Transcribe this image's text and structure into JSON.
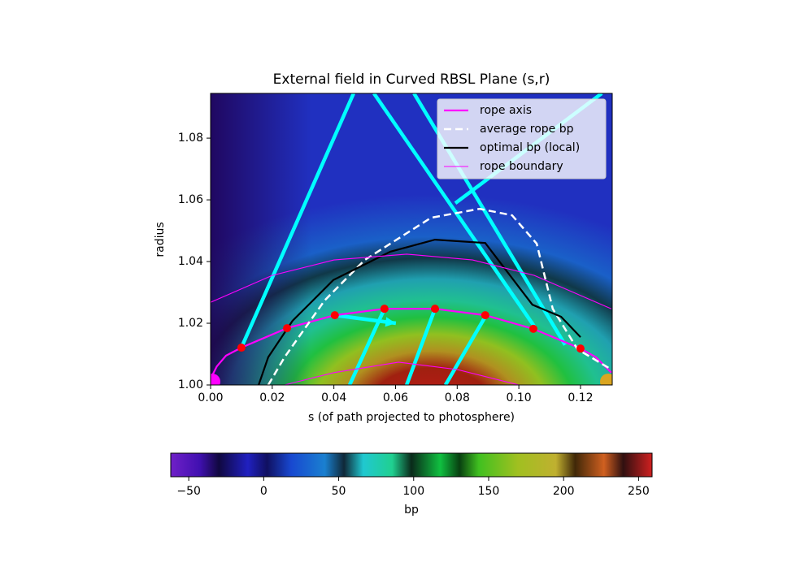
{
  "chart_data": {
    "type": "line",
    "title": "External field in Curved RBSL Plane (s,r)",
    "x_label": "s (of path projected to photosphere)",
    "y_label": "radius",
    "xlim": [
      0,
      0.1303
    ],
    "ylim": [
      1.0,
      1.0945
    ],
    "xticks": [
      {
        "value": 0,
        "label": "0.00"
      },
      {
        "value": 0.02,
        "label": "0.02"
      },
      {
        "value": 0.04,
        "label": "0.04"
      },
      {
        "value": 0.06,
        "label": "0.06"
      },
      {
        "value": 0.08,
        "label": "0.08"
      },
      {
        "value": 0.1,
        "label": "0.10"
      },
      {
        "value": 0.12,
        "label": "0.12"
      }
    ],
    "yticks": [
      {
        "value": 1.0,
        "label": "1.00"
      },
      {
        "value": 1.02,
        "label": "1.02"
      },
      {
        "value": 1.04,
        "label": "1.04"
      },
      {
        "value": 1.06,
        "label": "1.06"
      },
      {
        "value": 1.08,
        "label": "1.08"
      }
    ],
    "legend": "upper right",
    "series": [
      {
        "name": "rope axis",
        "color": "#ff00ff",
        "width": 2.2,
        "dash": "none",
        "x": [
          0,
          0.002,
          0.005,
          0.01,
          0.0248,
          0.0403,
          0.0564,
          0.0728,
          0.0891,
          0.1047,
          0.12,
          0.125,
          0.13
        ],
        "values": [
          1.002,
          1.006,
          1.0095,
          1.0121,
          1.0184,
          1.0226,
          1.0247,
          1.0247,
          1.0226,
          1.0182,
          1.0118,
          1.009,
          1.004
        ]
      },
      {
        "name": "average rope bp",
        "color": "#ffffff",
        "width": 2.5,
        "dash": "9,5",
        "x": [
          0.0187,
          0.024,
          0.037,
          0.05,
          0.0715,
          0.0873,
          0.0978,
          0.1058,
          0.111,
          0.119,
          0.13
        ],
        "values": [
          1.0,
          1.009,
          1.0274,
          1.0405,
          1.0542,
          1.0571,
          1.055,
          1.0458,
          1.0247,
          1.0116,
          1.005
        ]
      },
      {
        "name": "optimal bp (local)",
        "color": "#000000",
        "width": 2.2,
        "dash": "none",
        "x": [
          0.0156,
          0.0187,
          0.0266,
          0.0398,
          0.0583,
          0.0728,
          0.0891,
          0.1044,
          0.1137,
          0.12
        ],
        "values": [
          1.0,
          1.009,
          1.0208,
          1.034,
          1.0432,
          1.0471,
          1.046,
          1.026,
          1.0221,
          1.0155
        ]
      },
      {
        "name": "rope boundary",
        "color": "#ff00ff",
        "width": 1.1,
        "dash": "none",
        "x": [
          0,
          0.02,
          0.04,
          0.0636,
          0.085,
          0.105,
          0.13,
          null,
          0.024,
          0.04,
          0.061,
          0.08,
          0.1
        ],
        "values": [
          1.0268,
          1.0355,
          1.0405,
          1.0424,
          1.0405,
          1.0355,
          1.0247,
          null,
          1.0,
          1.004,
          1.0074,
          1.005,
          1.0
        ]
      }
    ],
    "markers": {
      "color": "#ff0000",
      "x": [
        0.01,
        0.0248,
        0.0403,
        0.0564,
        0.0728,
        0.0891,
        0.1047,
        0.12
      ],
      "values": [
        1.0121,
        1.0184,
        1.0226,
        1.0247,
        1.0247,
        1.0226,
        1.0182,
        1.0118
      ]
    },
    "field_lines": {
      "color": "#00ffff",
      "width": 4.5,
      "x": [
        0.01,
        0.0464,
        null,
        0.053,
        0.105,
        null,
        0.066,
        0.115,
        null,
        0.0794,
        0.1269,
        null,
        0.0451,
        0.0564,
        null,
        0.0636,
        0.0728,
        null,
        0.0762,
        0.0891,
        null,
        0.0403,
        0.0601
      ],
      "values": [
        1.0121,
        1.0945,
        null,
        1.0945,
        1.019,
        null,
        1.0945,
        1.013,
        null,
        1.0589,
        1.0945,
        null,
        1.0,
        1.0247,
        null,
        1.0,
        1.0247,
        null,
        1.0,
        1.0221,
        null,
        1.0226,
        1.02
      ]
    },
    "colorbar": {
      "label": "bp",
      "lim": [
        -62,
        259
      ],
      "ticks": [
        {
          "value": -50,
          "label": "−50"
        },
        0,
        50,
        100,
        150,
        200,
        250
      ]
    }
  }
}
